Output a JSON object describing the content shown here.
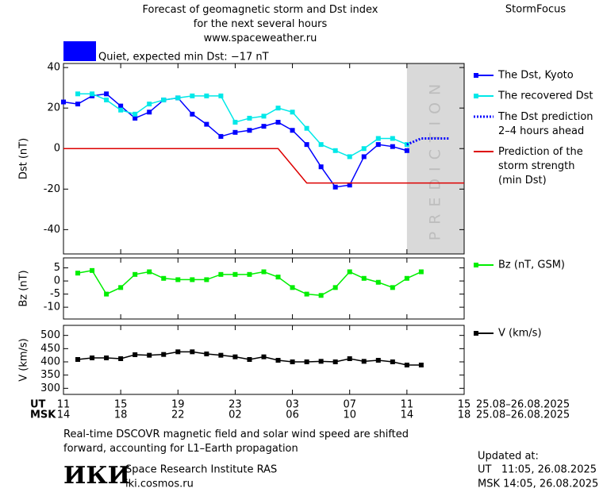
{
  "header": {
    "title": "Forecast of geomagnetic storm and Dst index\nfor the next several hours\nwww.spaceweather.ru",
    "brand": "StormFocus",
    "status": "Quiet, expected min Dst: −17 nT",
    "status_color": "#0000ff"
  },
  "chart_data": [
    {
      "type": "line",
      "ylabel": "Dst (nT)",
      "xlim": [
        11,
        39
      ],
      "ylim": [
        -52,
        42
      ],
      "yticks": [
        -40,
        -20,
        0,
        20,
        40
      ],
      "shade": {
        "label": "PREDICTION",
        "x": [
          35,
          39
        ],
        "color": "#d9d9d9"
      },
      "series": [
        {
          "name": "The Dst, Kyoto",
          "color": "#0000ff",
          "marker": "square",
          "x": [
            11,
            12,
            13,
            14,
            15,
            16,
            17,
            18,
            19,
            20,
            21,
            22,
            23,
            24,
            25,
            26,
            27,
            28,
            29,
            30,
            31,
            32,
            33,
            34,
            35
          ],
          "values": [
            23,
            22,
            26,
            27,
            21,
            15,
            18,
            24,
            25,
            17,
            12,
            6,
            8,
            9,
            11,
            13,
            9,
            2,
            -9,
            -19,
            -18,
            -4,
            2,
            1,
            -1
          ]
        },
        {
          "name": "The recovered Dst",
          "color": "#00e8e8",
          "marker": "square",
          "x": [
            12,
            13,
            14,
            15,
            16,
            17,
            18,
            19,
            20,
            21,
            22,
            23,
            24,
            25,
            26,
            27,
            28,
            29,
            30,
            31,
            32,
            33,
            34,
            35
          ],
          "values": [
            27,
            27,
            24,
            19,
            17,
            22,
            24,
            25,
            26,
            26,
            26,
            13,
            15,
            16,
            20,
            18,
            10,
            2,
            -1,
            -4,
            0,
            5,
            5,
            2
          ]
        },
        {
          "name": "The Dst prediction\n2–4 hours ahead",
          "color": "#0000ff",
          "dash": "dotted",
          "x": [
            35,
            36,
            37,
            38
          ],
          "values": [
            2,
            5,
            5,
            5
          ]
        },
        {
          "name": "Prediction of the\nstorm strength\n(min Dst)",
          "color": "#dd0000",
          "x": [
            11,
            26,
            28,
            39
          ],
          "values": [
            0,
            0,
            -17,
            -17
          ]
        }
      ]
    },
    {
      "type": "line",
      "ylabel": "Bz (nT)",
      "xlim": [
        11,
        39
      ],
      "ylim": [
        -14.5,
        8.8
      ],
      "yticks": [
        -10,
        -5,
        0,
        5
      ],
      "series": [
        {
          "name": "Bz (nT, GSM)",
          "color": "#00ee00",
          "marker": "square",
          "x": [
            12,
            13,
            14,
            15,
            16,
            17,
            18,
            19,
            20,
            21,
            22,
            23,
            24,
            25,
            26,
            27,
            28,
            29,
            30,
            31,
            32,
            33,
            34,
            35,
            36
          ],
          "values": [
            3,
            4,
            -5,
            -2.5,
            2.5,
            3.5,
            1,
            0.5,
            0.5,
            0.5,
            2.5,
            2.5,
            2.5,
            3.5,
            1.5,
            -2.5,
            -5,
            -5.5,
            -2.5,
            3.5,
            1,
            -0.5,
            -2.5,
            1,
            3.5
          ]
        }
      ]
    },
    {
      "type": "line",
      "ylabel": "V (km/s)",
      "xlim": [
        11,
        39
      ],
      "ylim": [
        277,
        538
      ],
      "yticks": [
        300,
        350,
        400,
        450,
        500
      ],
      "xlabel": "UT",
      "xrange_label": "25.08–26.08.2025",
      "x2label": "MSK",
      "x2range_label": "25.08–26.08.2025",
      "xticks": [
        11,
        15,
        19,
        23,
        {
          "value": 27,
          "label": "03"
        },
        {
          "value": 31,
          "label": "07"
        },
        {
          "value": 35,
          "label": "11"
        },
        {
          "value": 39,
          "label": "15"
        }
      ],
      "x2ticks": [
        {
          "value": 11,
          "label": "14"
        },
        {
          "value": 15,
          "label": "18"
        },
        {
          "value": 19,
          "label": "22"
        },
        {
          "value": 23,
          "label": "02"
        },
        {
          "value": 27,
          "label": "06"
        },
        {
          "value": 31,
          "label": "10"
        },
        {
          "value": 35,
          "label": "14"
        },
        {
          "value": 39,
          "label": "18"
        }
      ],
      "series": [
        {
          "name": "V (km/s)",
          "color": "#000000",
          "marker": "square",
          "x": [
            12,
            13,
            14,
            15,
            16,
            17,
            18,
            19,
            20,
            21,
            22,
            23,
            24,
            25,
            26,
            27,
            28,
            29,
            30,
            31,
            32,
            33,
            34,
            35,
            36
          ],
          "values": [
            409,
            415,
            415,
            412,
            427,
            425,
            428,
            438,
            438,
            430,
            425,
            419,
            409,
            419,
            406,
            400,
            400,
            402,
            400,
            412,
            402,
            406,
            400,
            388,
            388
          ]
        }
      ]
    }
  ],
  "footer": {
    "note": "Real-time DSCOVR magnetic field and solar wind speed are shifted\nforward, accounting for L1–Earth propagation",
    "logo": "ИКИ",
    "institute": "Space Research Institute RAS",
    "site": "iki.cosmos.ru",
    "updated_label": "Updated at:",
    "updated_ut": "UT   11:05, 26.08.2025",
    "updated_msk": "MSK 14:05, 26.08.2025"
  }
}
